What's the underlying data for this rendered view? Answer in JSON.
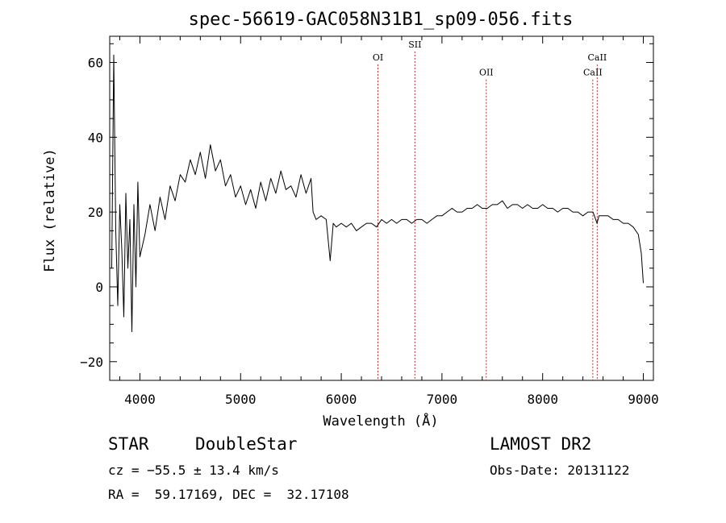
{
  "chart_data": {
    "type": "line",
    "title": "spec-56619-GAC058N31B1_sp09-056.fits",
    "xlabel": "Wavelength (Å)",
    "ylabel": "Flux (relative)",
    "xlim": [
      3700,
      9100
    ],
    "ylim": [
      -25,
      67
    ],
    "x_ticks": [
      4000,
      5000,
      6000,
      7000,
      8000,
      9000
    ],
    "y_ticks": [
      -20,
      0,
      20,
      40,
      60
    ],
    "x_tick_labels": [
      "4000",
      "5000",
      "6000",
      "7000",
      "8000",
      "9000"
    ],
    "y_tick_labels": [
      "−20",
      "0",
      "20",
      "40",
      "60"
    ],
    "grid": false,
    "series": [
      {
        "x": [
          3720,
          3740,
          3760,
          3780,
          3800,
          3820,
          3840,
          3860,
          3880,
          3900,
          3920,
          3940,
          3960,
          3980,
          4000,
          4050,
          4100,
          4150,
          4200,
          4250,
          4300,
          4350,
          4400,
          4450,
          4500,
          4550,
          4600,
          4650,
          4700,
          4750,
          4800,
          4850,
          4900,
          4950,
          5000,
          5050,
          5100,
          5150,
          5200,
          5250,
          5300,
          5350,
          5400,
          5450,
          5500,
          5550,
          5600,
          5650,
          5700,
          5720,
          5750,
          5800,
          5850,
          5890,
          5920,
          5950,
          6000,
          6050,
          6100,
          6150,
          6200,
          6250,
          6300,
          6350,
          6400,
          6450,
          6500,
          6550,
          6600,
          6650,
          6700,
          6750,
          6800,
          6850,
          6900,
          6950,
          7000,
          7050,
          7100,
          7150,
          7200,
          7250,
          7300,
          7350,
          7400,
          7450,
          7500,
          7550,
          7600,
          7650,
          7700,
          7750,
          7800,
          7850,
          7900,
          7950,
          8000,
          8050,
          8100,
          8150,
          8200,
          8250,
          8300,
          8350,
          8400,
          8450,
          8500,
          8540,
          8560,
          8600,
          8650,
          8700,
          8750,
          8800,
          8850,
          8900,
          8950,
          8980,
          9000
        ],
        "y": [
          5,
          62,
          15,
          -5,
          22,
          10,
          -8,
          25,
          5,
          18,
          -12,
          22,
          0,
          28,
          8,
          14,
          22,
          15,
          24,
          18,
          27,
          23,
          30,
          28,
          34,
          30,
          36,
          29,
          38,
          31,
          34,
          27,
          30,
          24,
          27,
          22,
          26,
          21,
          28,
          23,
          29,
          25,
          31,
          26,
          27,
          24,
          30,
          25,
          29,
          20,
          18,
          19,
          18,
          7,
          17,
          16,
          17,
          16,
          17,
          15,
          16,
          17,
          17,
          16,
          18,
          17,
          18,
          17,
          18,
          18,
          17,
          18,
          18,
          17,
          18,
          19,
          19,
          20,
          21,
          20,
          20,
          21,
          21,
          22,
          21,
          21,
          22,
          22,
          23,
          21,
          22,
          22,
          21,
          22,
          21,
          21,
          22,
          21,
          21,
          20,
          21,
          21,
          20,
          20,
          19,
          20,
          20,
          17,
          19,
          19,
          19,
          18,
          18,
          17,
          17,
          16,
          14,
          9,
          1
        ]
      }
    ],
    "annotations": [
      {
        "label": "OI",
        "x": 6364,
        "label_y": 60.5
      },
      {
        "label": "SII",
        "x": 6731,
        "label_y": 64
      },
      {
        "label": "OII",
        "x": 7440,
        "label_y": 56.5
      },
      {
        "label": "CaII",
        "x": 8542,
        "label_y": 60.5
      },
      {
        "label": "CaII",
        "x": 8498,
        "label_y": 56.5
      }
    ],
    "line_colors": {
      "spectrum": "#000000",
      "annotation": "#b03030"
    }
  },
  "info": {
    "object_class": "STAR",
    "subclass": "DoubleStar",
    "survey": "LAMOST DR2",
    "redshift": "cz = −55.5 ± 13.4 km/s",
    "obs_date": "Obs-Date: 20131122",
    "coords": "RA =  59.17169, DEC =  32.17108"
  }
}
